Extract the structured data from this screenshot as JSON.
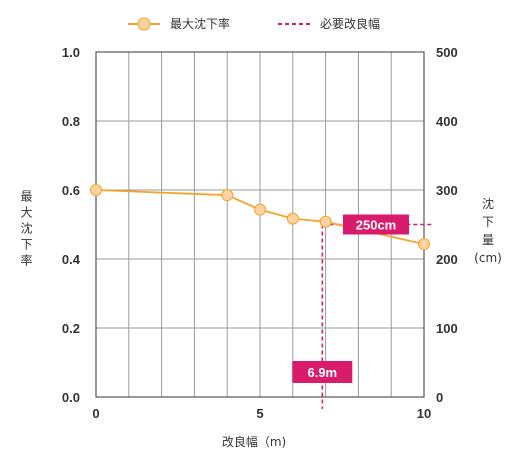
{
  "legend": {
    "series_label": "最大沈下率",
    "reference_label": "必要改良幅"
  },
  "axes": {
    "xlabel": "改良幅（m)",
    "ylabel_left": "最大沈下率",
    "ylabel_right_chars": [
      "沈",
      "下",
      "量"
    ],
    "ylabel_right_unit": "(cm)"
  },
  "chart_data": {
    "type": "line",
    "series": [
      {
        "name": "最大沈下率",
        "x": [
          0,
          4,
          5,
          6,
          7,
          10
        ],
        "y": [
          0.6,
          0.585,
          0.543,
          0.517,
          0.508,
          0.443
        ]
      }
    ],
    "xlim": [
      0,
      10
    ],
    "ylim_left": [
      0.0,
      1.0
    ],
    "ylim_right": [
      0,
      500
    ],
    "x_ticks": [
      "0",
      "5",
      "10"
    ],
    "x_tick_values": [
      0,
      5,
      10
    ],
    "y_left_ticks": [
      "0.0",
      "0.2",
      "0.4",
      "0.6",
      "0.8",
      "1.0"
    ],
    "y_left_tick_values": [
      0.0,
      0.2,
      0.4,
      0.6,
      0.8,
      1.0
    ],
    "y_right_ticks": [
      "0",
      "100",
      "200",
      "300",
      "400",
      "500"
    ],
    "y_right_tick_values": [
      0,
      100,
      200,
      300,
      400,
      500
    ],
    "x_gridlines": [
      0,
      1,
      2,
      3,
      4,
      5,
      6,
      7,
      8,
      9,
      10
    ],
    "y_gridlines": [
      0.0,
      0.2,
      0.4,
      0.6,
      0.8,
      1.0
    ],
    "grid": true,
    "legend_position": "top",
    "reference": {
      "x": 6.9,
      "y_right": 250,
      "x_label": "6.9m",
      "y_label": "250cm"
    },
    "colors": {
      "series": "#f5a32a",
      "marker_fill": "#fdd3a0",
      "reference": "#d81b6a",
      "grid": "#9a9a9a"
    }
  }
}
